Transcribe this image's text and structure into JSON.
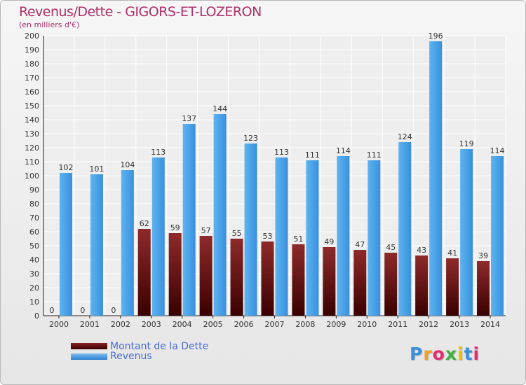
{
  "chart_data": {
    "type": "bar",
    "title": "Revenus/Dette - GIGORS-ET-LOZERON",
    "subtitle": "(en milliers d'€)",
    "categories": [
      "2000",
      "2001",
      "2002",
      "2003",
      "2004",
      "2005",
      "2006",
      "2007",
      "2008",
      "2009",
      "2010",
      "2011",
      "2012",
      "2013",
      "2014"
    ],
    "series": [
      {
        "name": "Montant de la Dette",
        "values": [
          0,
          0,
          0,
          62,
          59,
          57,
          55,
          53,
          51,
          49,
          47,
          45,
          43,
          41,
          39
        ],
        "color": "#6e1414"
      },
      {
        "name": "Revenus",
        "values": [
          102,
          101,
          104,
          113,
          137,
          144,
          123,
          113,
          111,
          114,
          111,
          124,
          196,
          119,
          114
        ],
        "color": "#4aa3e8"
      }
    ],
    "ylim": [
      0,
      200
    ],
    "ytick_step": 10,
    "grid": true,
    "legend_position": "bottom-left"
  },
  "legend": {
    "dette_label": "Montant de la Dette",
    "revenus_label": "Revenus"
  },
  "logo": {
    "letters": [
      "P",
      "r",
      "o",
      "x",
      "i",
      "t",
      "i"
    ],
    "colors": [
      "#3a8fdc",
      "#f0a020",
      "#e03070",
      "#40b040",
      "#f0c000",
      "#3a8fdc",
      "#e03070"
    ]
  }
}
